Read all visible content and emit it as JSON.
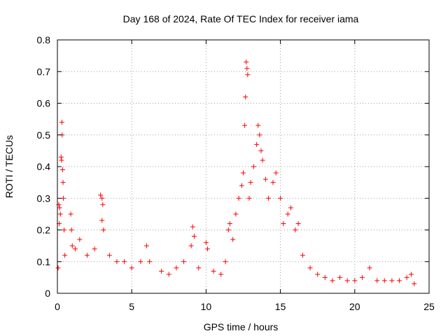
{
  "chart_data": {
    "type": "scatter",
    "title": "Day 168 of 2024, Rate Of TEC Index for receiver iama",
    "xlabel": "GPS time / hours",
    "ylabel": "ROTI / TECUs",
    "xlim": [
      0,
      25
    ],
    "ylim": [
      0,
      0.8
    ],
    "xticks": [
      "0",
      "5",
      "10",
      "15",
      "20",
      "25"
    ],
    "yticks": [
      "0",
      "0.1",
      "0.2",
      "0.3",
      "0.4",
      "0.5",
      "0.6",
      "0.7",
      "0.8"
    ],
    "grid": true,
    "marker": "+",
    "color": "#ff0000",
    "series": [
      {
        "values": [
          [
            0.05,
            0.08
          ],
          [
            0.1,
            0.28
          ],
          [
            0.12,
            0.22
          ],
          [
            0.15,
            0.27
          ],
          [
            0.2,
            0.25
          ],
          [
            0.25,
            0.43
          ],
          [
            0.28,
            0.42
          ],
          [
            0.3,
            0.54
          ],
          [
            0.32,
            0.5
          ],
          [
            0.35,
            0.39
          ],
          [
            0.38,
            0.35
          ],
          [
            0.4,
            0.3
          ],
          [
            0.45,
            0.2
          ],
          [
            0.5,
            0.12
          ],
          [
            0.9,
            0.25
          ],
          [
            0.95,
            0.2
          ],
          [
            1.0,
            0.15
          ],
          [
            1.2,
            0.14
          ],
          [
            1.5,
            0.17
          ],
          [
            2.0,
            0.12
          ],
          [
            2.5,
            0.14
          ],
          [
            2.9,
            0.31
          ],
          [
            3.0,
            0.3
          ],
          [
            3.05,
            0.28
          ],
          [
            3.0,
            0.23
          ],
          [
            3.1,
            0.2
          ],
          [
            3.5,
            0.12
          ],
          [
            4.0,
            0.1
          ],
          [
            4.5,
            0.1
          ],
          [
            5.0,
            0.08
          ],
          [
            5.6,
            0.1
          ],
          [
            6.0,
            0.15
          ],
          [
            6.2,
            0.1
          ],
          [
            7.0,
            0.07
          ],
          [
            7.5,
            0.06
          ],
          [
            8.0,
            0.08
          ],
          [
            8.5,
            0.1
          ],
          [
            9.0,
            0.15
          ],
          [
            9.1,
            0.21
          ],
          [
            9.2,
            0.18
          ],
          [
            9.5,
            0.08
          ],
          [
            10.0,
            0.16
          ],
          [
            10.1,
            0.14
          ],
          [
            10.5,
            0.07
          ],
          [
            11.0,
            0.06
          ],
          [
            11.3,
            0.1
          ],
          [
            11.5,
            0.2
          ],
          [
            11.6,
            0.22
          ],
          [
            11.8,
            0.17
          ],
          [
            12.0,
            0.25
          ],
          [
            12.2,
            0.3
          ],
          [
            12.4,
            0.34
          ],
          [
            12.5,
            0.38
          ],
          [
            12.6,
            0.53
          ],
          [
            12.65,
            0.62
          ],
          [
            12.7,
            0.73
          ],
          [
            12.75,
            0.71
          ],
          [
            12.8,
            0.69
          ],
          [
            12.9,
            0.3
          ],
          [
            13.0,
            0.35
          ],
          [
            13.2,
            0.4
          ],
          [
            13.4,
            0.47
          ],
          [
            13.5,
            0.53
          ],
          [
            13.6,
            0.5
          ],
          [
            13.7,
            0.45
          ],
          [
            13.8,
            0.42
          ],
          [
            14.0,
            0.36
          ],
          [
            14.2,
            0.3
          ],
          [
            14.5,
            0.35
          ],
          [
            14.7,
            0.38
          ],
          [
            15.0,
            0.3
          ],
          [
            15.2,
            0.22
          ],
          [
            15.5,
            0.25
          ],
          [
            15.7,
            0.27
          ],
          [
            16.0,
            0.2
          ],
          [
            16.2,
            0.22
          ],
          [
            16.5,
            0.12
          ],
          [
            17.0,
            0.08
          ],
          [
            17.5,
            0.06
          ],
          [
            18.0,
            0.05
          ],
          [
            18.5,
            0.04
          ],
          [
            19.0,
            0.05
          ],
          [
            19.5,
            0.04
          ],
          [
            20.0,
            0.04
          ],
          [
            20.5,
            0.05
          ],
          [
            21.0,
            0.08
          ],
          [
            21.5,
            0.04
          ],
          [
            22.0,
            0.04
          ],
          [
            22.5,
            0.04
          ],
          [
            23.0,
            0.04
          ],
          [
            23.5,
            0.05
          ],
          [
            23.8,
            0.06
          ],
          [
            24.0,
            0.03
          ]
        ]
      }
    ]
  }
}
